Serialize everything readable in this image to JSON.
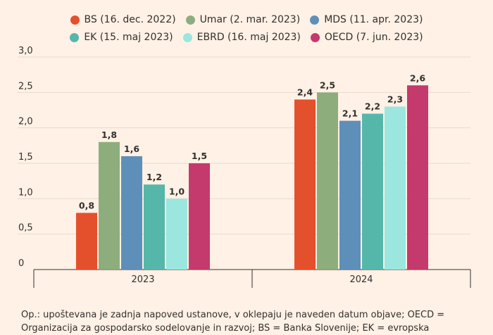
{
  "chart_data": {
    "type": "bar",
    "categories": [
      "2023",
      "2024"
    ],
    "series": [
      {
        "name": "BS (16. dec. 2022)",
        "color": "#e5502c",
        "values": [
          0.8,
          2.4
        ],
        "labels": [
          "0,8",
          "2,4"
        ]
      },
      {
        "name": "Umar (2. mar. 2023)",
        "color": "#8ead7d",
        "values": [
          1.8,
          2.5
        ],
        "labels": [
          "1,8",
          "2,5"
        ]
      },
      {
        "name": "MDS (11. apr. 2023)",
        "color": "#5e8fb8",
        "values": [
          1.6,
          2.1
        ],
        "labels": [
          "1,6",
          "2,1"
        ]
      },
      {
        "name": "EK (15. maj 2023)",
        "color": "#55b7aa",
        "values": [
          1.2,
          2.2
        ],
        "labels": [
          "1,2",
          "2,2"
        ]
      },
      {
        "name": "EBRD (16. maj 2023)",
        "color": "#9be6df",
        "values": [
          1.0,
          2.3
        ],
        "labels": [
          "1,0",
          "2,3"
        ]
      },
      {
        "name": "OECD (7. jun. 2023)",
        "color": "#c53a6c",
        "values": [
          1.5,
          2.6
        ],
        "labels": [
          "1,5",
          "2,6"
        ]
      }
    ],
    "ylim": [
      0,
      3.0
    ],
    "yticks": [
      0,
      0.5,
      1.0,
      1.5,
      2.0,
      2.5,
      3.0
    ],
    "ytick_labels": [
      "0",
      "0,5",
      "1,0",
      "1,5",
      "2,0",
      "2,5",
      "3,0"
    ],
    "title": "",
    "xlabel": "",
    "ylabel": "",
    "grid": true,
    "legend_position": "top"
  },
  "footnote": "Op.: upoštevana je zadnja napoved ustanove, v oklepaju je naveden datum objave; OECD = Organizacija za gospodarsko sodelovanje in razvoj; BS = Banka Slovenije; EK = evropska"
}
